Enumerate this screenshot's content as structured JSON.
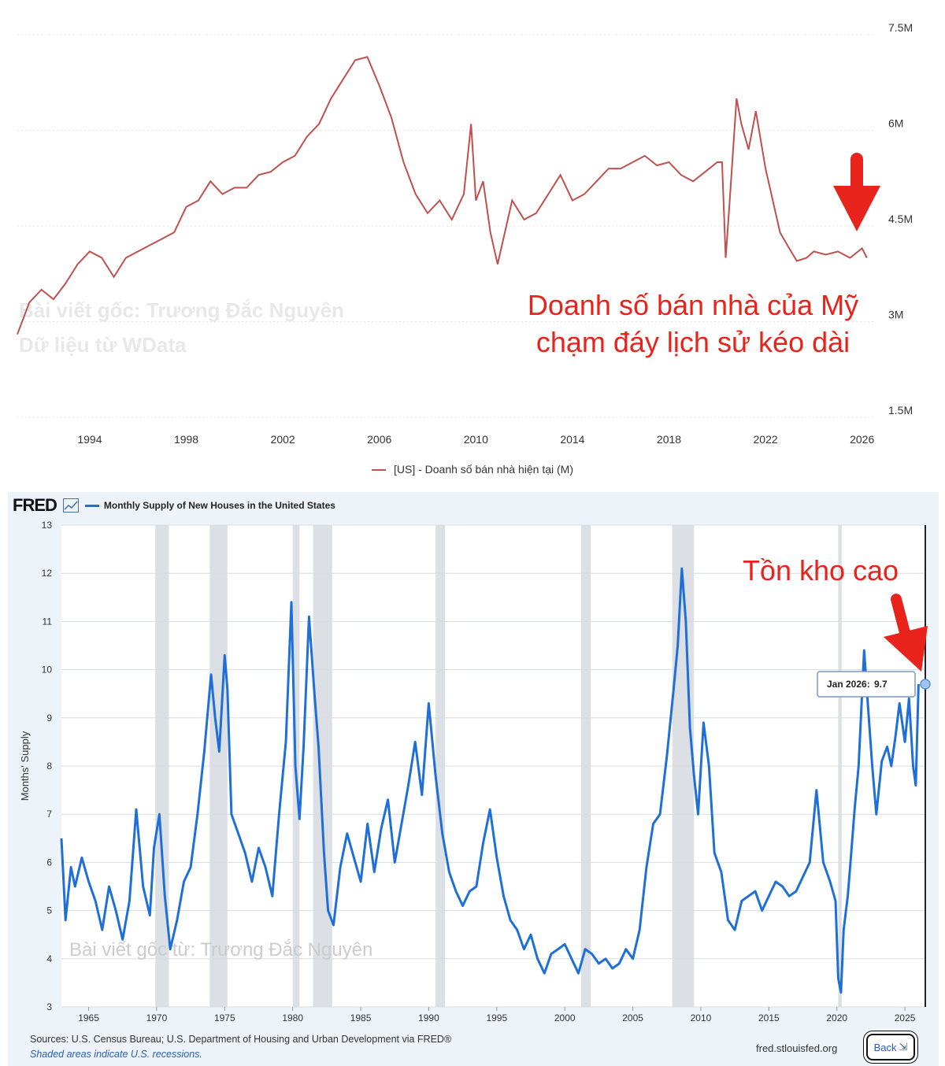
{
  "chart_data": [
    {
      "type": "line",
      "xlim": [
        1991,
        2026.5
      ],
      "ylim": [
        1.5,
        7.5
      ],
      "yticks": [
        "7.5M",
        "6M",
        "4.5M",
        "3M",
        "1.5M"
      ],
      "ytick_values": [
        7.5,
        6,
        4.5,
        3,
        1.5
      ],
      "xticks": [
        "1994",
        "1998",
        "2002",
        "2006",
        "2010",
        "2014",
        "2018",
        "2022",
        "2026"
      ],
      "xtick_values": [
        1994,
        1998,
        2002,
        2006,
        2010,
        2014,
        2018,
        2022,
        2026
      ],
      "grid": true,
      "legend_position": "bottom",
      "series": [
        {
          "name": "[US] - Doanh số bán nhà hiện tại (M)",
          "color": "#c0504d",
          "x": [
            1991.0,
            1991.5,
            1992.0,
            1992.5,
            1993.0,
            1993.5,
            1994.0,
            1994.5,
            1995.0,
            1995.5,
            1996.0,
            1996.5,
            1997.0,
            1997.5,
            1998.0,
            1998.5,
            1999.0,
            1999.5,
            2000.0,
            2000.5,
            2001.0,
            2001.5,
            2002.0,
            2002.5,
            2003.0,
            2003.5,
            2004.0,
            2004.5,
            2005.0,
            2005.5,
            2006.0,
            2006.5,
            2007.0,
            2007.5,
            2008.0,
            2008.5,
            2009.0,
            2009.5,
            2009.8,
            2010.0,
            2010.3,
            2010.6,
            2010.9,
            2011.5,
            2012.0,
            2012.5,
            2013.0,
            2013.5,
            2014.0,
            2014.5,
            2015.0,
            2015.5,
            2016.0,
            2016.5,
            2017.0,
            2017.5,
            2018.0,
            2018.5,
            2019.0,
            2019.5,
            2020.0,
            2020.2,
            2020.35,
            2020.5,
            2020.8,
            2021.0,
            2021.3,
            2021.6,
            2022.0,
            2022.3,
            2022.6,
            2022.9,
            2023.3,
            2023.7,
            2024.0,
            2024.5,
            2025.0,
            2025.5,
            2026.0,
            2026.2
          ],
          "y": [
            2.8,
            3.3,
            3.5,
            3.35,
            3.6,
            3.9,
            4.1,
            4.0,
            3.7,
            4.0,
            4.1,
            4.2,
            4.3,
            4.4,
            4.8,
            4.9,
            5.2,
            5.0,
            5.1,
            5.1,
            5.3,
            5.35,
            5.5,
            5.6,
            5.9,
            6.1,
            6.5,
            6.8,
            7.1,
            7.15,
            6.7,
            6.2,
            5.5,
            5.0,
            4.7,
            4.9,
            4.6,
            5.0,
            6.1,
            4.9,
            5.2,
            4.4,
            3.9,
            4.9,
            4.6,
            4.7,
            5.0,
            5.3,
            4.9,
            5.0,
            5.2,
            5.4,
            5.4,
            5.5,
            5.6,
            5.45,
            5.5,
            5.3,
            5.2,
            5.35,
            5.5,
            5.5,
            4.0,
            4.8,
            6.5,
            6.1,
            5.7,
            6.3,
            5.4,
            4.9,
            4.4,
            4.2,
            3.95,
            4.0,
            4.1,
            4.05,
            4.1,
            4.0,
            4.15,
            4.0
          ]
        }
      ],
      "annotations": [
        "Doanh số bán nhà của Mỹ",
        "chạm đáy lịch sử kéo dài"
      ],
      "watermark": [
        "Bài viết gốc: Trương Đắc Nguyên",
        "Dữ liệu từ WData"
      ]
    },
    {
      "type": "line",
      "xlim": [
        1963,
        2026.5
      ],
      "ylim": [
        3,
        13
      ],
      "yticks": [
        "13",
        "12",
        "11",
        "10",
        "9",
        "8",
        "7",
        "6",
        "5",
        "4",
        "3"
      ],
      "ytick_values": [
        13,
        12,
        11,
        10,
        9,
        8,
        7,
        6,
        5,
        4,
        3
      ],
      "xticks": [
        "1965",
        "1970",
        "1975",
        "1980",
        "1985",
        "1990",
        "1995",
        "2000",
        "2005",
        "2010",
        "2015",
        "2020",
        "2025"
      ],
      "xtick_values": [
        1965,
        1970,
        1975,
        1980,
        1985,
        1990,
        1995,
        2000,
        2005,
        2010,
        2015,
        2020,
        2025
      ],
      "ylabel": "Months' Supply",
      "grid": true,
      "recessions": [
        [
          1969.9,
          1970.9
        ],
        [
          1973.9,
          1975.2
        ],
        [
          1980.0,
          1980.5
        ],
        [
          1981.5,
          1982.9
        ],
        [
          1990.5,
          1991.2
        ],
        [
          2001.2,
          2001.9
        ],
        [
          2007.9,
          2009.5
        ],
        [
          2020.1,
          2020.35
        ]
      ],
      "series": [
        {
          "name": "Monthly Supply of New Houses in the United States",
          "color": "#1f6fd8",
          "x": [
            1963.0,
            1963.3,
            1963.7,
            1964.0,
            1964.5,
            1965.0,
            1965.5,
            1966.0,
            1966.5,
            1967.0,
            1967.5,
            1968.0,
            1968.5,
            1969.0,
            1969.5,
            1969.8,
            1970.2,
            1970.6,
            1971.0,
            1971.5,
            1972.0,
            1972.5,
            1973.0,
            1973.5,
            1974.0,
            1974.3,
            1974.6,
            1975.0,
            1975.2,
            1975.5,
            1976.0,
            1976.5,
            1977.0,
            1977.5,
            1978.0,
            1978.5,
            1979.0,
            1979.5,
            1979.9,
            1980.2,
            1980.5,
            1980.8,
            1981.2,
            1981.6,
            1981.9,
            1982.3,
            1982.6,
            1983.0,
            1983.5,
            1984.0,
            1984.5,
            1985.0,
            1985.5,
            1986.0,
            1986.5,
            1987.0,
            1987.5,
            1988.0,
            1988.5,
            1989.0,
            1989.5,
            1990.0,
            1990.5,
            1991.0,
            1991.5,
            1992.0,
            1992.5,
            1993.0,
            1993.5,
            1994.0,
            1994.5,
            1995.0,
            1995.5,
            1996.0,
            1996.5,
            1997.0,
            1997.5,
            1998.0,
            1998.5,
            1999.0,
            1999.5,
            2000.0,
            2000.5,
            2001.0,
            2001.5,
            2002.0,
            2002.5,
            2003.0,
            2003.5,
            2004.0,
            2004.5,
            2005.0,
            2005.5,
            2006.0,
            2006.5,
            2007.0,
            2007.5,
            2008.0,
            2008.3,
            2008.6,
            2008.9,
            2009.2,
            2009.5,
            2009.8,
            2010.2,
            2010.6,
            2011.0,
            2011.5,
            2012.0,
            2012.5,
            2013.0,
            2013.5,
            2014.0,
            2014.5,
            2015.0,
            2015.5,
            2016.0,
            2016.5,
            2017.0,
            2017.5,
            2018.0,
            2018.5,
            2019.0,
            2019.5,
            2019.9,
            2020.1,
            2020.3,
            2020.5,
            2020.8,
            2021.0,
            2021.3,
            2021.6,
            2022.0,
            2022.3,
            2022.6,
            2022.9,
            2023.3,
            2023.7,
            2024.0,
            2024.3,
            2024.6,
            2025.0,
            2025.3,
            2025.6,
            2025.8,
            2026.0
          ],
          "y": [
            6.5,
            4.8,
            5.9,
            5.5,
            6.1,
            5.6,
            5.2,
            4.6,
            5.5,
            5.0,
            4.4,
            5.2,
            7.1,
            5.5,
            4.9,
            6.3,
            7.0,
            5.3,
            4.2,
            4.8,
            5.6,
            5.9,
            7.0,
            8.3,
            9.9,
            9.0,
            8.3,
            10.3,
            9.6,
            7.0,
            6.6,
            6.2,
            5.6,
            6.3,
            5.9,
            5.3,
            7.0,
            8.5,
            11.4,
            8.0,
            6.9,
            8.4,
            11.1,
            9.5,
            8.4,
            6.2,
            5.0,
            4.7,
            5.9,
            6.6,
            6.1,
            5.6,
            6.8,
            5.8,
            6.7,
            7.3,
            6.0,
            6.8,
            7.6,
            8.5,
            7.4,
            9.3,
            7.8,
            6.6,
            5.8,
            5.4,
            5.1,
            5.4,
            5.5,
            6.4,
            7.1,
            6.1,
            5.3,
            4.8,
            4.6,
            4.2,
            4.5,
            4.0,
            3.7,
            4.1,
            4.2,
            4.3,
            4.0,
            3.7,
            4.2,
            4.1,
            3.9,
            4.0,
            3.8,
            3.9,
            4.2,
            4.0,
            4.6,
            5.9,
            6.8,
            7.0,
            8.2,
            9.6,
            10.5,
            12.1,
            11.0,
            8.8,
            7.8,
            7.0,
            8.9,
            8.0,
            6.2,
            5.8,
            4.8,
            4.6,
            5.2,
            5.3,
            5.4,
            5.0,
            5.3,
            5.6,
            5.5,
            5.3,
            5.4,
            5.7,
            6.0,
            7.5,
            6.0,
            5.6,
            5.2,
            3.6,
            3.3,
            4.6,
            5.3,
            6.0,
            7.1,
            8.0,
            10.4,
            9.2,
            8.0,
            7.0,
            8.1,
            8.4,
            8.0,
            8.6,
            9.3,
            8.5,
            9.4,
            8.0,
            7.6,
            9.7
          ]
        }
      ],
      "tooltip": {
        "label": "Jan 2026:",
        "value": "9.7"
      },
      "annotation": "Tồn kho cao",
      "watermark": "Bài viết gốc từ: Trương Đắc Nguyên"
    }
  ],
  "fred": {
    "logo": "FRED",
    "series_title": "Monthly Supply of New Houses in the United States",
    "sources": "Sources: U.S. Census Bureau; U.S. Department of Housing and Urban Development via FRED®",
    "shaded_note": "Shaded areas indicate U.S. recessions.",
    "url": "fred.stlouisfed.org",
    "back_label": "Back"
  },
  "colors": {
    "sales_line": "#c0504d",
    "supply_line": "#1f6fd8",
    "annotation_red": "#e8231b",
    "recession_gray": "#d6d9de"
  }
}
